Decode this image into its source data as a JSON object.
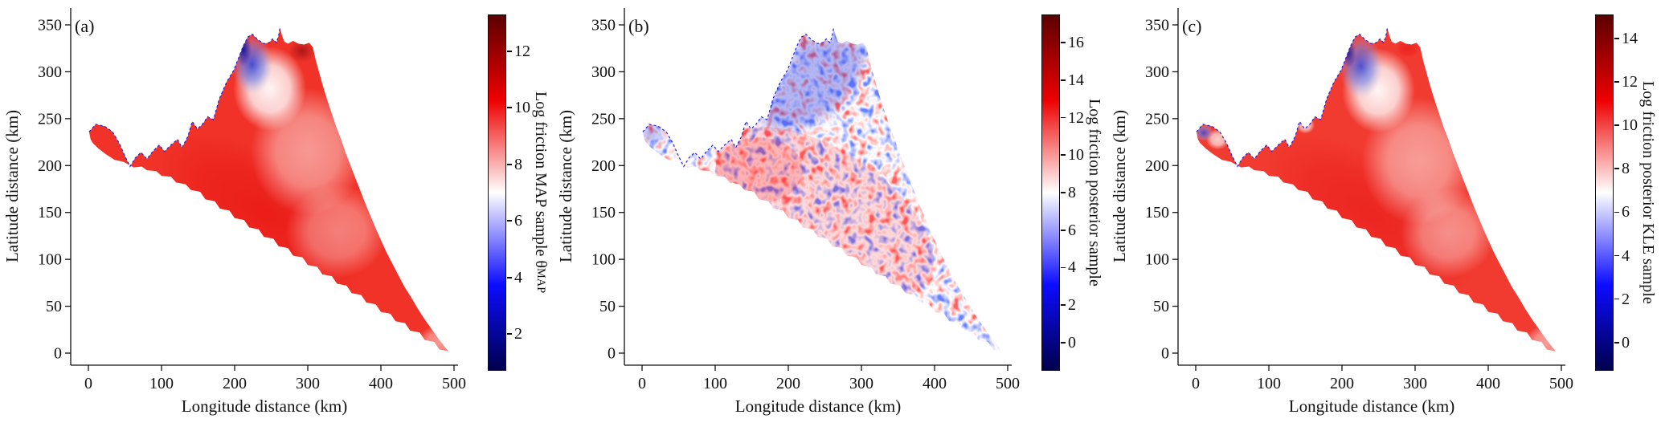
{
  "figure": {
    "panels": [
      {
        "label": "(a)",
        "xlabel": "Longitude distance (km)",
        "ylabel": "Latitude distance (km)",
        "xticks": [
          0,
          100,
          200,
          300,
          400,
          500
        ],
        "yticks": [
          0,
          50,
          100,
          150,
          200,
          250,
          300,
          350
        ],
        "colorbar": {
          "label": "Log friction MAP sample θ",
          "label_subscript": "MAP",
          "ticks": [
            2,
            4,
            6,
            8,
            10,
            12
          ],
          "vmin": 0.7,
          "vmax": 13.3
        }
      },
      {
        "label": "(b)",
        "xlabel": "Longitude distance (km)",
        "ylabel": "Latitude distance (km)",
        "xticks": [
          0,
          100,
          200,
          300,
          400,
          500
        ],
        "yticks": [
          0,
          50,
          100,
          150,
          200,
          250,
          300,
          350
        ],
        "colorbar": {
          "label": "Log friction posterior sample",
          "label_subscript": "",
          "ticks": [
            0,
            2,
            4,
            6,
            8,
            10,
            12,
            14,
            16
          ],
          "vmin": -1.5,
          "vmax": 17.5
        }
      },
      {
        "label": "(c)",
        "xlabel": "Longitude distance (km)",
        "ylabel": "Latitude distance (km)",
        "xticks": [
          0,
          100,
          200,
          300,
          400,
          500
        ],
        "yticks": [
          0,
          50,
          100,
          150,
          200,
          250,
          300,
          350
        ],
        "colorbar": {
          "label": "Log friction posterior KLE sample",
          "label_subscript": "",
          "ticks": [
            0,
            2,
            4,
            6,
            8,
            10,
            12,
            14
          ],
          "vmin": -1.3,
          "vmax": 15.1
        }
      }
    ]
  },
  "colors": {
    "colormap_name": "seismic (dark red - red - white - blue - dark navy)",
    "colormap_top": "#5c0000",
    "colormap_red": "#ee0000",
    "colormap_white": "#ffffff",
    "colormap_blue": "#0c0cff",
    "colormap_bottom": "#00004c",
    "grounding_line_dashed": "#2222dd",
    "axis_color": "#111111",
    "background": "#ffffff"
  },
  "chart_data": [
    {
      "type": "heatmap",
      "panel": "(a)",
      "title": "",
      "xlabel": "Longitude distance (km)",
      "ylabel": "Latitude distance (km)",
      "xlim": [
        -25,
        505
      ],
      "ylim": [
        -13,
        367
      ],
      "xticks": [
        0,
        100,
        200,
        300,
        400,
        500
      ],
      "yticks": [
        0,
        50,
        100,
        150,
        200,
        250,
        300,
        350
      ],
      "colormap": "seismic",
      "colorbar_label": "Log friction MAP sample θ_MAP",
      "colorbar_ticks": [
        2,
        4,
        6,
        8,
        10,
        12
      ],
      "colorbar_range": [
        0.7,
        13.3
      ],
      "grid": false,
      "field_description": "Triangular glacier-catchment domain (tip at ~(490,3) km, peak at ~(222,340) km, narrow western arm to ~(2,233) km). Smooth field: interior mostly 9-11 (red), deeper red ~11-12 along southwest band, pale 7-8 patches in center-east, white-to-blue patch 2-6 below northern margin near (200-250, 270-340), blue dashed grounding line along northwest edge."
    },
    {
      "type": "heatmap",
      "panel": "(b)",
      "title": "",
      "xlabel": "Longitude distance (km)",
      "ylabel": "Latitude distance (km)",
      "xlim": [
        -25,
        505
      ],
      "ylim": [
        -13,
        367
      ],
      "xticks": [
        0,
        100,
        200,
        300,
        400,
        500
      ],
      "yticks": [
        0,
        50,
        100,
        150,
        200,
        250,
        300,
        350
      ],
      "colormap": "seismic",
      "colorbar_label": "Log friction posterior sample",
      "colorbar_ticks": [
        0,
        2,
        4,
        6,
        8,
        10,
        12,
        14,
        16
      ],
      "colorbar_range": [
        -1.5,
        17.5
      ],
      "grid": false,
      "field_description": "Same domain as (a) but rough/noisy posterior draw: mottled red (10-14) and blue (3-7) blobs of ~10-15 km scale over white (~8) background; blue-dominant band along the northern/northwest margin, red-dominant through center and southwest."
    },
    {
      "type": "heatmap",
      "panel": "(c)",
      "title": "",
      "xlabel": "Longitude distance (km)",
      "ylabel": "Latitude distance (km)",
      "xlim": [
        -25,
        505
      ],
      "ylim": [
        -13,
        367
      ],
      "xticks": [
        0,
        100,
        200,
        300,
        400,
        500
      ],
      "yticks": [
        0,
        50,
        100,
        150,
        200,
        250,
        300,
        350
      ],
      "colormap": "seismic",
      "colorbar_label": "Log friction posterior KLE sample",
      "colorbar_ticks": [
        0,
        2,
        4,
        6,
        8,
        10,
        12,
        14
      ],
      "colorbar_range": [
        -1.3,
        15.1
      ],
      "grid": false,
      "field_description": "Same domain, smooth KLE posterior sample very similar to (a): interior 9-11 (red), white-blue patch 2-6 below northern margin near (200-250, 270-340), additional small blue patch at western arm tip (~(10,235)), blue dashed grounding line along northwest edge."
    }
  ]
}
